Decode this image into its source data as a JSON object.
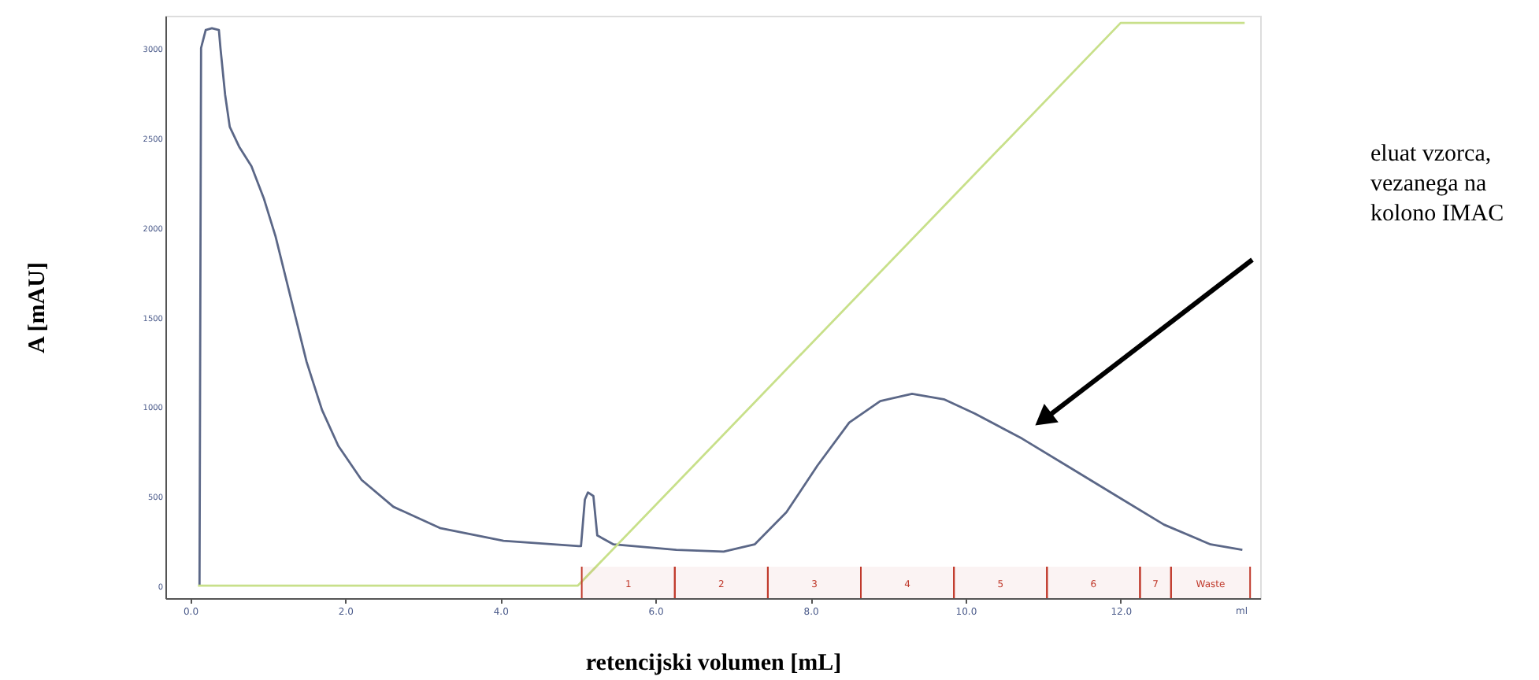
{
  "chart_data": {
    "type": "line",
    "xlabel": "retencijski volumen [mL]",
    "ylabel": "A [mAU]",
    "xlim": [
      -0.32,
      13.8
    ],
    "ylim": [
      -70,
      3180
    ],
    "xticks": [
      {
        "value": 0,
        "label": "0.0"
      },
      {
        "value": 2,
        "label": "2.0"
      },
      {
        "value": 4,
        "label": "4.0"
      },
      {
        "value": 6,
        "label": "6.0"
      },
      {
        "value": 8,
        "label": "8.0"
      },
      {
        "value": 10,
        "label": "10.0"
      },
      {
        "value": 12,
        "label": "12.0"
      }
    ],
    "yticks": [
      0,
      500,
      1000,
      1500,
      2000,
      2500,
      3000
    ],
    "grid": false,
    "marker": "none",
    "line_style": "solid",
    "series": [
      {
        "color": "#5b6787",
        "x": [
          0.12,
          0.14,
          0.2,
          0.28,
          0.37,
          0.39,
          0.45,
          0.51,
          0.63,
          0.79,
          0.95,
          1.1,
          1.3,
          1.5,
          1.7,
          1.91,
          2.21,
          2.62,
          3.23,
          4.04,
          5.01,
          5.04,
          5.09,
          5.13,
          5.2,
          5.25,
          5.46,
          6.27,
          6.88,
          7.28,
          7.69,
          8.09,
          8.5,
          8.9,
          9.31,
          9.72,
          10.12,
          10.73,
          11.34,
          11.95,
          12.56,
          13.16,
          13.57
        ],
        "values": [
          0,
          3000,
          3100,
          3110,
          3100,
          3000,
          2740,
          2560,
          2450,
          2340,
          2160,
          1950,
          1600,
          1250,
          980,
          780,
          590,
          440,
          320,
          250,
          220,
          220,
          480,
          520,
          500,
          280,
          230,
          200,
          190,
          230,
          410,
          670,
          910,
          1030,
          1070,
          1040,
          960,
          820,
          660,
          500,
          340,
          230,
          200
        ]
      },
      {
        "color": "#c8e08a",
        "x": [
          0.1,
          5.0,
          12.0,
          13.6
        ],
        "values": [
          0,
          0,
          3140,
          3140
        ]
      }
    ],
    "bands": [
      {
        "axis": "x",
        "from": 5.05,
        "to": 6.25,
        "label": "1",
        "color": "#c0392b"
      },
      {
        "axis": "x",
        "from": 6.25,
        "to": 7.45,
        "label": "2",
        "color": "#c0392b"
      },
      {
        "axis": "x",
        "from": 7.45,
        "to": 8.65,
        "label": "3",
        "color": "#c0392b"
      },
      {
        "axis": "x",
        "from": 8.65,
        "to": 9.85,
        "label": "4",
        "color": "#c0392b"
      },
      {
        "axis": "x",
        "from": 9.85,
        "to": 11.05,
        "label": "5",
        "color": "#c0392b"
      },
      {
        "axis": "x",
        "from": 11.05,
        "to": 12.25,
        "label": "6",
        "color": "#c0392b"
      },
      {
        "axis": "x",
        "from": 12.25,
        "to": 12.65,
        "label": "7",
        "color": "#c0392b"
      },
      {
        "axis": "x",
        "from": 12.65,
        "to": 13.67,
        "label": "Waste",
        "color": "#c0392b"
      }
    ],
    "annotations": [
      "ml",
      "eluat vzorca, vezanega na kolono IMAC"
    ]
  }
}
